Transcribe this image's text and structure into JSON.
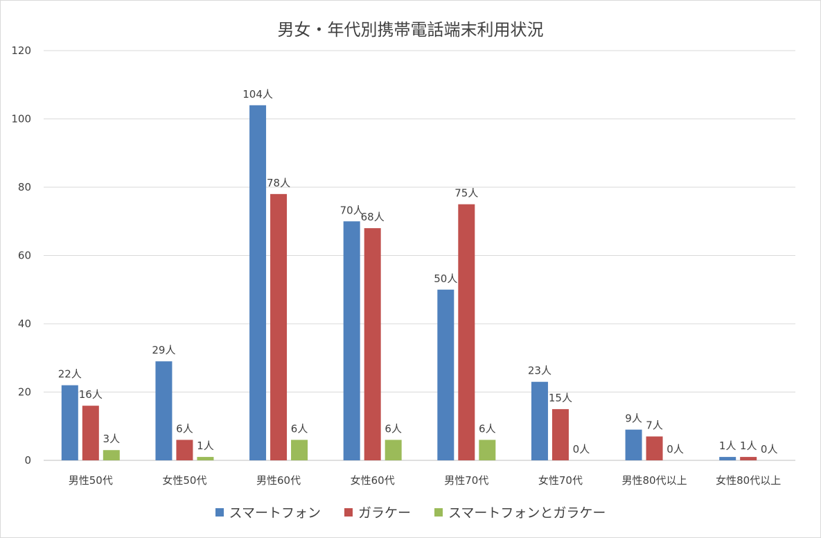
{
  "chart_data": {
    "type": "bar",
    "title": "男女・年代別携帯電話端末利用状況",
    "categories": [
      "男性50代",
      "女性50代",
      "男性60代",
      "女性60代",
      "男性70代",
      "女性70代",
      "男性80代以上",
      "女性80代以上"
    ],
    "series": [
      {
        "name": "スマートフォン",
        "color": "#4f81bd",
        "values": [
          22,
          29,
          104,
          70,
          50,
          23,
          9,
          1
        ]
      },
      {
        "name": "ガラケー",
        "color": "#c0504d",
        "values": [
          16,
          6,
          78,
          68,
          75,
          15,
          7,
          1
        ]
      },
      {
        "name": "スマートフォンとガラケー",
        "color": "#9bbb59",
        "values": [
          3,
          1,
          6,
          6,
          6,
          0,
          0,
          0
        ]
      }
    ],
    "data_label_suffix": "人",
    "ylim": [
      0,
      120
    ],
    "yticks": [
      0,
      20,
      40,
      60,
      80,
      100,
      120
    ],
    "grid": true,
    "legend_position": "bottom"
  }
}
